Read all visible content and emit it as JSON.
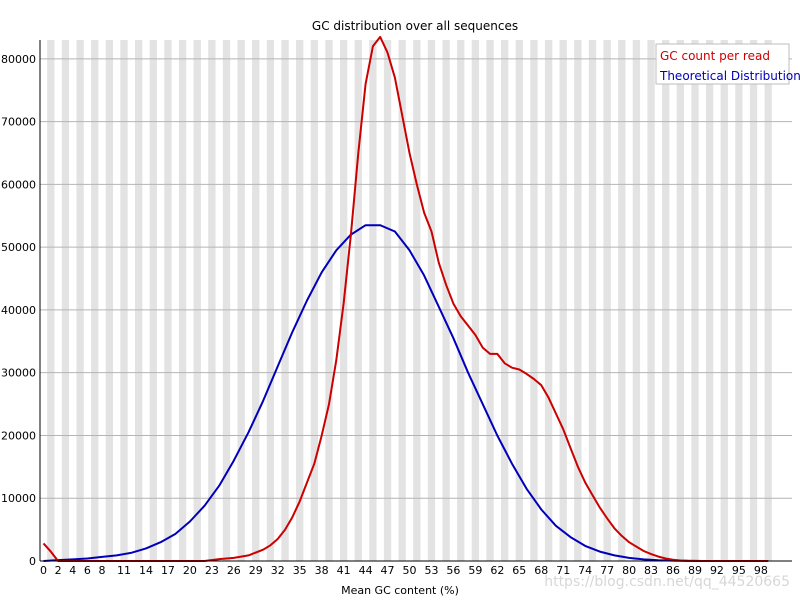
{
  "chart_data": {
    "type": "line",
    "title": "GC distribution over all sequences",
    "xlabel": "Mean GC content (%)",
    "ylabel": "",
    "xlim": [
      0,
      100
    ],
    "ylim": [
      0,
      83000
    ],
    "y_ticks": [
      0,
      10000,
      20000,
      30000,
      40000,
      50000,
      60000,
      70000,
      80000
    ],
    "x_tick_labels": [
      "0",
      "2",
      "4",
      "6",
      "8",
      "11",
      "14",
      "17",
      "20",
      "23",
      "26",
      "29",
      "32",
      "35",
      "38",
      "41",
      "44",
      "47",
      "50",
      "53",
      "56",
      "59",
      "62",
      "65",
      "68",
      "71",
      "74",
      "77",
      "80",
      "83",
      "86",
      "89",
      "92",
      "95",
      "98"
    ],
    "background_bands": "alternating light grey vertical stripes",
    "grid": true,
    "legend_position": "top-right",
    "series": [
      {
        "name": "GC count per read",
        "color": "#cc0000",
        "points": [
          [
            0,
            2800
          ],
          [
            1,
            1500
          ],
          [
            2,
            0
          ],
          [
            10,
            0
          ],
          [
            20,
            0
          ],
          [
            22,
            0
          ],
          [
            24,
            300
          ],
          [
            26,
            500
          ],
          [
            28,
            900
          ],
          [
            30,
            1800
          ],
          [
            31,
            2500
          ],
          [
            32,
            3500
          ],
          [
            33,
            5000
          ],
          [
            34,
            7000
          ],
          [
            35,
            9500
          ],
          [
            36,
            12500
          ],
          [
            37,
            15500
          ],
          [
            38,
            20000
          ],
          [
            39,
            25000
          ],
          [
            40,
            32000
          ],
          [
            41,
            41000
          ],
          [
            42,
            52000
          ],
          [
            43,
            65000
          ],
          [
            44,
            76000
          ],
          [
            45,
            82000
          ],
          [
            46,
            83500
          ],
          [
            47,
            81000
          ],
          [
            48,
            77000
          ],
          [
            49,
            71000
          ],
          [
            50,
            65000
          ],
          [
            51,
            60000
          ],
          [
            52,
            55500
          ],
          [
            53,
            52500
          ],
          [
            54,
            47500
          ],
          [
            55,
            44000
          ],
          [
            56,
            41000
          ],
          [
            57,
            39000
          ],
          [
            58,
            37500
          ],
          [
            59,
            36000
          ],
          [
            60,
            34000
          ],
          [
            61,
            33000
          ],
          [
            62,
            33000
          ],
          [
            63,
            31500
          ],
          [
            64,
            30800
          ],
          [
            65,
            30500
          ],
          [
            66,
            29800
          ],
          [
            67,
            29000
          ],
          [
            68,
            28000
          ],
          [
            69,
            26000
          ],
          [
            70,
            23500
          ],
          [
            71,
            21000
          ],
          [
            72,
            18000
          ],
          [
            73,
            15000
          ],
          [
            74,
            12500
          ],
          [
            75,
            10500
          ],
          [
            76,
            8500
          ],
          [
            77,
            6800
          ],
          [
            78,
            5200
          ],
          [
            79,
            4000
          ],
          [
            80,
            3000
          ],
          [
            81,
            2300
          ],
          [
            82,
            1600
          ],
          [
            83,
            1100
          ],
          [
            84,
            700
          ],
          [
            85,
            400
          ],
          [
            86,
            200
          ],
          [
            87,
            80
          ],
          [
            88,
            30
          ],
          [
            90,
            0
          ],
          [
            99,
            0
          ]
        ]
      },
      {
        "name": "Theoretical Distribution",
        "color": "#0000bb",
        "points": [
          [
            0,
            0
          ],
          [
            2,
            150
          ],
          [
            4,
            250
          ],
          [
            6,
            400
          ],
          [
            8,
            650
          ],
          [
            10,
            900
          ],
          [
            12,
            1300
          ],
          [
            14,
            2000
          ],
          [
            16,
            3000
          ],
          [
            18,
            4300
          ],
          [
            20,
            6300
          ],
          [
            22,
            8800
          ],
          [
            24,
            12000
          ],
          [
            26,
            16000
          ],
          [
            28,
            20500
          ],
          [
            30,
            25500
          ],
          [
            32,
            31000
          ],
          [
            34,
            36500
          ],
          [
            36,
            41500
          ],
          [
            38,
            46000
          ],
          [
            40,
            49500
          ],
          [
            42,
            52000
          ],
          [
            44,
            53500
          ],
          [
            46,
            53500
          ],
          [
            48,
            52500
          ],
          [
            50,
            49500
          ],
          [
            52,
            45500
          ],
          [
            54,
            40500
          ],
          [
            56,
            35500
          ],
          [
            58,
            30000
          ],
          [
            60,
            25000
          ],
          [
            62,
            20000
          ],
          [
            64,
            15500
          ],
          [
            66,
            11500
          ],
          [
            68,
            8200
          ],
          [
            70,
            5600
          ],
          [
            72,
            3800
          ],
          [
            74,
            2400
          ],
          [
            76,
            1500
          ],
          [
            78,
            900
          ],
          [
            80,
            500
          ],
          [
            82,
            260
          ],
          [
            84,
            130
          ],
          [
            86,
            60
          ],
          [
            88,
            20
          ],
          [
            90,
            0
          ],
          [
            99,
            0
          ]
        ]
      }
    ]
  },
  "watermark": "https://blog.csdn.net/qq_44520665"
}
